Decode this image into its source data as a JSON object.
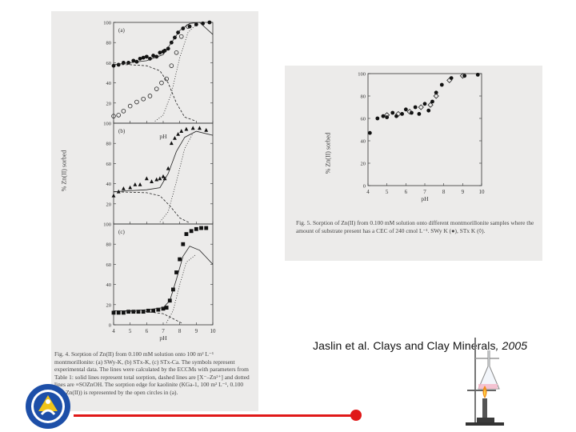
{
  "left_figure": {
    "ylabel": "% Zn(II) sorbed",
    "xlabel": "pH",
    "panels": [
      {
        "label": "(a)",
        "ticks_y": [
          "100",
          "80",
          "60",
          "40",
          "20",
          "0"
        ]
      },
      {
        "label": "(b)",
        "ticks_y": [
          "100",
          "80",
          "60",
          "40",
          "20",
          "0"
        ]
      },
      {
        "label": "(c)",
        "ticks_y": [
          "100",
          "80",
          "60",
          "40",
          "20",
          "0"
        ]
      }
    ],
    "ticks_x": [
      "4",
      "5",
      "6",
      "7",
      "8",
      "9",
      "10"
    ],
    "caption": "Fig. 4. Sorption of Zn(II) from 0.100 mM solution onto 100 m² L⁻¹ montmorillonite: (a) SWy-K, (b) STx-K, (c) STx-Ca. The symbols represent experimental data. The lines were calculated by the ECCMs with parameters from Table 1: solid lines represent total sorption, dashed lines are [X⁻–Zn²⁺] and dotted lines are ≡SOZnOH. The sorption edge for kaolinite (KGa-1, 100 m² L⁻¹, 0.100 mM Zn(II)) is represented by the open circles in (a)."
  },
  "right_figure": {
    "ylabel": "% Zn(II) sorbed",
    "xlabel": "pH",
    "ticks_y": [
      "100",
      "80",
      "60",
      "40",
      "20",
      "0"
    ],
    "ticks_x": [
      "4",
      "5",
      "6",
      "7",
      "8",
      "9",
      "10"
    ],
    "caption": "Fig. 5. Sorption of Zn(II) from 0.100 mM solution onto different montmorillonite samples where the amount of substrate present has a CEC of 240 cmol L⁻¹. SWy K (●), STx K (◊)."
  },
  "citation": {
    "authors": "Jaslin et al. ",
    "journal": "Clays and Clay Minerals",
    "year": ", 2005"
  },
  "colors": {
    "accent_red": "#e01818",
    "scan_bg": "#ecebea"
  },
  "icons": [
    "university-logo",
    "bunsen-burner-icon"
  ],
  "chart_data": [
    {
      "type": "scatter",
      "panel": "(a)",
      "xlabel": "pH",
      "ylabel": "% Zn(II) sorbed",
      "xlim": [
        4,
        10
      ],
      "ylim": [
        0,
        100
      ],
      "series": [
        {
          "marker": "filled-circle",
          "x": [
            4.0,
            4.3,
            4.6,
            4.9,
            5.2,
            5.4,
            5.6,
            5.8,
            6.0,
            6.2,
            6.4,
            6.6,
            6.8,
            7.0,
            7.1,
            7.3,
            7.5,
            7.7,
            7.9,
            8.2,
            8.6,
            9.0,
            9.4,
            9.8
          ],
          "y": [
            57,
            58,
            60,
            60,
            62,
            61,
            64,
            65,
            66,
            64,
            67,
            66,
            70,
            71,
            72,
            74,
            80,
            85,
            90,
            94,
            96,
            98,
            99,
            100
          ]
        },
        {
          "marker": "open-circle",
          "x": [
            4.0,
            4.3,
            4.6,
            5.0,
            5.4,
            5.8,
            6.2,
            6.6,
            6.9,
            7.2,
            7.5,
            7.8,
            8.1,
            8.5
          ],
          "y": [
            7,
            8,
            12,
            17,
            21,
            24,
            27,
            34,
            40,
            44,
            57,
            70,
            86,
            96
          ]
        }
      ]
    },
    {
      "type": "scatter",
      "panel": "(b)",
      "xlabel": "pH",
      "ylabel": "% Zn(II) sorbed",
      "xlim": [
        4,
        10
      ],
      "ylim": [
        0,
        100
      ],
      "series": [
        {
          "marker": "filled-triangle",
          "x": [
            4.0,
            4.3,
            4.6,
            5.0,
            5.3,
            5.6,
            6.0,
            6.3,
            6.6,
            6.8,
            7.0,
            7.1,
            7.3,
            7.5,
            7.7,
            7.9,
            8.1,
            8.4,
            8.8,
            9.2,
            9.6
          ],
          "y": [
            28,
            32,
            35,
            36,
            39,
            39,
            45,
            42,
            44,
            45,
            47,
            45,
            55,
            80,
            85,
            89,
            92,
            94,
            95,
            95,
            93
          ]
        }
      ]
    },
    {
      "type": "scatter",
      "panel": "(c)",
      "xlabel": "pH",
      "ylabel": "% Zn(II) sorbed",
      "xlim": [
        4,
        10
      ],
      "ylim": [
        0,
        100
      ],
      "series": [
        {
          "marker": "filled-square",
          "x": [
            4.0,
            4.3,
            4.6,
            4.9,
            5.2,
            5.5,
            5.8,
            6.1,
            6.4,
            6.7,
            7.0,
            7.2,
            7.4,
            7.6,
            7.8,
            8.0,
            8.2,
            8.4,
            8.7,
            9.0,
            9.3,
            9.6
          ],
          "y": [
            12,
            12,
            12,
            13,
            13,
            13,
            13,
            14,
            14,
            15,
            16,
            17,
            24,
            35,
            52,
            65,
            80,
            90,
            93,
            95,
            96,
            96
          ]
        }
      ]
    },
    {
      "type": "scatter",
      "panel": "Fig. 5",
      "xlabel": "pH",
      "ylabel": "% Zn(II) sorbed",
      "xlim": [
        4,
        10
      ],
      "ylim": [
        0,
        100
      ],
      "series": [
        {
          "marker": "filled-circle",
          "x": [
            4.1,
            4.5,
            4.8,
            5.0,
            5.3,
            5.5,
            5.8,
            6.0,
            6.3,
            6.5,
            6.7,
            7.0,
            7.2,
            7.4,
            7.6,
            7.9,
            8.4,
            9.1,
            9.8
          ],
          "y": [
            47,
            60,
            62,
            61,
            65,
            62,
            64,
            68,
            65,
            70,
            64,
            73,
            67,
            75,
            83,
            90,
            96,
            98,
            99
          ]
        },
        {
          "marker": "open-diamond",
          "x": [
            5.0,
            5.6,
            6.2,
            6.8,
            7.3,
            7.6,
            8.3,
            9.0
          ],
          "y": [
            63,
            64,
            66,
            70,
            72,
            80,
            94,
            98
          ]
        }
      ]
    }
  ]
}
